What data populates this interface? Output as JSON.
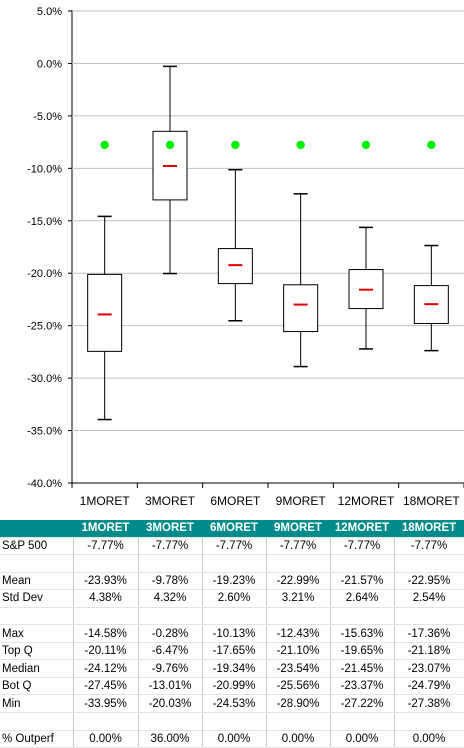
{
  "chart_data": {
    "type": "boxplot",
    "ylim": [
      -40,
      5
    ],
    "yticks": [
      "5.0%",
      "0.0%",
      "-5.0%",
      "-10.0%",
      "-15.0%",
      "-20.0%",
      "-25.0%",
      "-30.0%",
      "-35.0%",
      "-40.0%"
    ],
    "ytick_values": [
      5,
      0,
      -5,
      -10,
      -15,
      -20,
      -25,
      -30,
      -35,
      -40
    ],
    "categories": [
      "1MORET",
      "3MORET",
      "6MORET",
      "9MORET",
      "12MORET",
      "18MORET"
    ],
    "boxes": [
      {
        "max": -14.58,
        "top_q": -20.11,
        "mean": -23.93,
        "bot_q": -27.45,
        "min": -33.95
      },
      {
        "max": -0.28,
        "top_q": -6.47,
        "mean": -9.78,
        "bot_q": -13.01,
        "min": -20.03
      },
      {
        "max": -10.13,
        "top_q": -17.65,
        "mean": -19.23,
        "bot_q": -20.99,
        "min": -24.53
      },
      {
        "max": -12.43,
        "top_q": -21.1,
        "mean": -22.99,
        "bot_q": -25.56,
        "min": -28.9
      },
      {
        "max": -15.63,
        "top_q": -19.65,
        "mean": -21.57,
        "bot_q": -23.37,
        "min": -27.22
      },
      {
        "max": -17.36,
        "top_q": -21.18,
        "mean": -22.95,
        "bot_q": -24.79,
        "min": -27.38
      }
    ],
    "benchmark": [
      -7.77,
      -7.77,
      -7.77,
      -7.77,
      -7.77,
      -7.77
    ],
    "grid": "horizontal",
    "colors": {
      "box": "#000000",
      "mean": "#e00000",
      "benchmark": "#00ee00",
      "grid": "#c0c0c0"
    }
  },
  "table": {
    "header_bg": "#008b8b",
    "columns": [
      "1MORET",
      "3MORET",
      "6MORET",
      "9MORET",
      "12MORET",
      "18MORET"
    ],
    "rows": [
      {
        "label": "S&P 500",
        "values": [
          "-7.77%",
          "-7.77%",
          "-7.77%",
          "-7.77%",
          "-7.77%",
          "-7.77%"
        ]
      },
      {
        "label": "",
        "values": [
          "",
          "",
          "",
          "",
          "",
          ""
        ]
      },
      {
        "label": "Mean",
        "values": [
          "-23.93%",
          "-9.78%",
          "-19.23%",
          "-22.99%",
          "-21.57%",
          "-22.95%"
        ]
      },
      {
        "label": "Std Dev",
        "values": [
          "4.38%",
          "4.32%",
          "2.60%",
          "3.21%",
          "2.64%",
          "2.54%"
        ]
      },
      {
        "label": "",
        "values": [
          "",
          "",
          "",
          "",
          "",
          ""
        ]
      },
      {
        "label": "Max",
        "values": [
          "-14.58%",
          "-0.28%",
          "-10.13%",
          "-12.43%",
          "-15.63%",
          "-17.36%"
        ]
      },
      {
        "label": "Top Q",
        "values": [
          "-20.11%",
          "-6.47%",
          "-17.65%",
          "-21.10%",
          "-19.65%",
          "-21.18%"
        ]
      },
      {
        "label": "Median",
        "values": [
          "-24.12%",
          "-9.76%",
          "-19.34%",
          "-23.54%",
          "-21.45%",
          "-23.07%"
        ]
      },
      {
        "label": "Bot Q",
        "values": [
          "-27.45%",
          "-13.01%",
          "-20.99%",
          "-25.56%",
          "-23.37%",
          "-24.79%"
        ]
      },
      {
        "label": "Min",
        "values": [
          "-33.95%",
          "-20.03%",
          "-24.53%",
          "-28.90%",
          "-27.22%",
          "-27.38%"
        ]
      },
      {
        "label": "",
        "values": [
          "",
          "",
          "",
          "",
          "",
          ""
        ]
      },
      {
        "label": "% Outperf",
        "values": [
          "0.00%",
          "36.00%",
          "0.00%",
          "0.00%",
          "0.00%",
          "0.00%"
        ]
      }
    ]
  }
}
